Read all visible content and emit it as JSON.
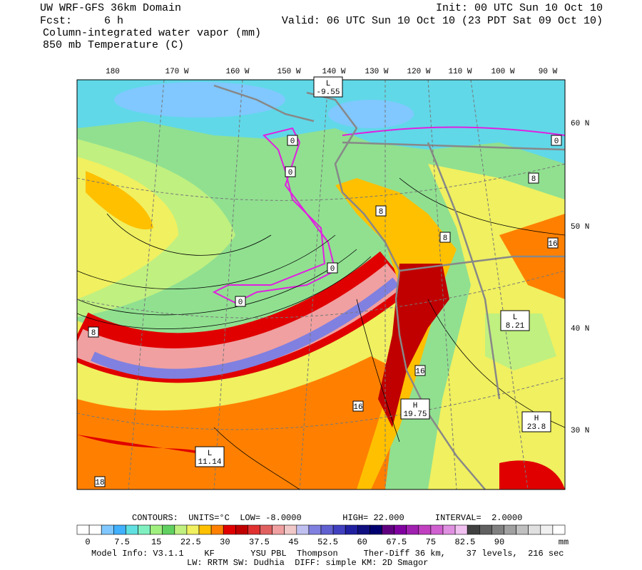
{
  "header": {
    "title": "UW WRF-GFS 36km Domain",
    "init": "Init: 00 UTC Sun 10 Oct 10",
    "forecast": "Fcst:     6 h",
    "valid": "Valid: 06 UTC Sun 10 Oct 10 (23 PDT Sat 09 Oct 10)",
    "field1": "Column-integrated water vapor (mm)",
    "field2": "850 mb Temperature (C)"
  },
  "map": {
    "longitude_labels": [
      "180",
      "170 W",
      "160 W",
      "150 W",
      "140 W",
      "130 W",
      "120 W",
      "110 W",
      "100 W",
      "90 W"
    ],
    "latitude_labels": [
      "60 N",
      "50 N",
      "40 N",
      "30 N"
    ],
    "contour_labels": [
      "0",
      "0",
      "0",
      "0",
      "0",
      "8",
      "8",
      "8",
      "16",
      "8",
      "16",
      "16",
      "18"
    ],
    "extremes": [
      {
        "mark": "L",
        "label": "-9.55"
      },
      {
        "mark": "L",
        "label": "8.21"
      },
      {
        "mark": "H",
        "label": "19.75"
      },
      {
        "mark": "H",
        "label": "23.8"
      },
      {
        "mark": "L",
        "label": "11.14"
      }
    ]
  },
  "colorbar": {
    "labels": [
      "0",
      "7.5",
      "15",
      "22.5",
      "30",
      "37.5",
      "45",
      "52.5",
      "60",
      "67.5",
      "75",
      "82.5",
      "90"
    ],
    "unit": "mm",
    "colors": [
      "#ffffff",
      "#ffffff",
      "#80c8ff",
      "#40b0ff",
      "#60e0e0",
      "#80f0c0",
      "#a0f080",
      "#60d060",
      "#c0f080",
      "#f0f060",
      "#ffc000",
      "#ff8000",
      "#e00000",
      "#c00000",
      "#e03030",
      "#e06060",
      "#f0a0a0",
      "#f0c8c8",
      "#c0c0f0",
      "#8080e0",
      "#6060d0",
      "#4040c0",
      "#2020a0",
      "#101080",
      "#000070",
      "#600080",
      "#8000a0",
      "#a020b0",
      "#c040c0",
      "#d060d0",
      "#e090e0",
      "#f0c0f0",
      "#404040",
      "#606060",
      "#808080",
      "#a0a0a0",
      "#c0c0c0",
      "#e0e0e0",
      "#f0f0f0",
      "#ffffff"
    ]
  },
  "footer": {
    "contours": "CONTOURS:  UNITS=°C  LOW= -8.0000        HIGH= 22.000      INTERVAL=  2.0000",
    "model_info": "Model Info: V3.1.1    KF       YSU PBL  Thompson     Ther-Diff 36 km,    37 levels,  216 sec",
    "physics": "LW: RRTM SW: Dudhia  DIFF: simple KM: 2D Smagor"
  }
}
